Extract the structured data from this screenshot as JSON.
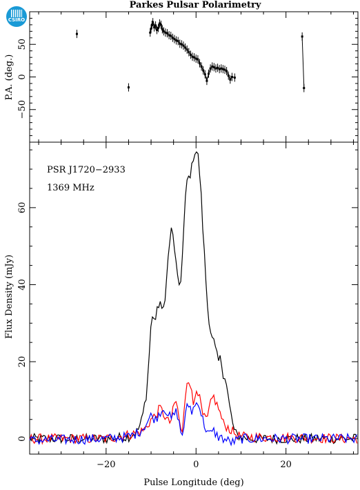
{
  "chart_data": [
    {
      "type": "scatter",
      "panel": "position-angle",
      "title": "Parkes Pulsar Polarimetry",
      "ylabel": "P.A. (deg.)",
      "xlim": [
        -37,
        36
      ],
      "ylim": [
        -100,
        100
      ],
      "y_ticks": [
        -50,
        0,
        50
      ],
      "series": [
        {
          "points": [
            [
              -26.5,
              66
            ],
            [
              -15,
              -16
            ],
            [
              -10.2,
              68
            ],
            [
              -10,
              74
            ],
            [
              -9.8,
              80
            ],
            [
              -9.6,
              84
            ],
            [
              -9.3,
              76
            ],
            [
              -9.0,
              79
            ],
            [
              -8.7,
              72
            ],
            [
              -8.4,
              75
            ],
            [
              -8.1,
              82
            ],
            [
              -7.8,
              80
            ],
            [
              -7.5,
              73
            ],
            [
              -7.2,
              70
            ],
            [
              -6.8,
              68
            ],
            [
              -6.4,
              67
            ],
            [
              -6.0,
              64
            ],
            [
              -5.6,
              63
            ],
            [
              -5.2,
              60
            ],
            [
              -4.8,
              58
            ],
            [
              -4.4,
              56
            ],
            [
              -4.0,
              55
            ],
            [
              -3.6,
              51
            ],
            [
              -3.2,
              50
            ],
            [
              -2.8,
              48
            ],
            [
              -2.4,
              45
            ],
            [
              -2.0,
              42
            ],
            [
              -1.6,
              38
            ],
            [
              -1.2,
              34
            ],
            [
              -0.8,
              31
            ],
            [
              -0.4,
              30
            ],
            [
              0.0,
              28
            ],
            [
              0.4,
              27
            ],
            [
              0.8,
              21
            ],
            [
              1.2,
              16
            ],
            [
              1.6,
              10
            ],
            [
              2.0,
              4
            ],
            [
              2.4,
              -6
            ],
            [
              2.8,
              5
            ],
            [
              3.2,
              13
            ],
            [
              3.6,
              16
            ],
            [
              4.0,
              15
            ],
            [
              4.4,
              13
            ],
            [
              4.8,
              14
            ],
            [
              5.2,
              12
            ],
            [
              5.6,
              13
            ],
            [
              6.0,
              12
            ],
            [
              6.4,
              11
            ],
            [
              6.8,
              9
            ],
            [
              7.2,
              2
            ],
            [
              7.6,
              -4
            ],
            [
              8.0,
              0
            ],
            [
              8.6,
              -1
            ],
            [
              23.6,
              62
            ],
            [
              24.0,
              -17
            ]
          ]
        }
      ]
    },
    {
      "type": "line",
      "panel": "profile",
      "xlabel": "Pulse Longitude (deg)",
      "ylabel": "Flux Density (mJy)",
      "annotations": [
        "PSR J1720−2933",
        "1369 MHz"
      ],
      "xlim": [
        -37,
        36
      ],
      "ylim": [
        -4,
        77
      ],
      "x_ticks": [
        -20,
        0,
        20
      ],
      "y_ticks": [
        0,
        20,
        40,
        60
      ],
      "x_tick_labels": [
        "−20",
        "0",
        "20"
      ],
      "y_tick_labels": [
        "0",
        "20",
        "40",
        "60"
      ],
      "grid": false,
      "colors": {
        "total": "#000000",
        "linear": "#ff0000",
        "circular": "#0000ff"
      },
      "series": [
        {
          "key": "total",
          "x": [
            -37,
            -20,
            -15,
            -13,
            -12,
            -11,
            -10.5,
            -10,
            -9.5,
            -9,
            -8.5,
            -8,
            -7.5,
            -7,
            -6.5,
            -6,
            -5.5,
            -5,
            -4.5,
            -4,
            -3.5,
            -3,
            -2.5,
            -2,
            -1.5,
            -1,
            -0.5,
            0,
            0.5,
            1,
            1.5,
            2,
            2.5,
            3,
            3.5,
            4,
            4.5,
            5,
            5.5,
            6,
            6.5,
            7,
            7.5,
            8,
            8.5,
            9,
            10,
            12,
            36
          ],
          "values": [
            0,
            0,
            0.5,
            2,
            5,
            12,
            20,
            30,
            32,
            31,
            34,
            36,
            32,
            36,
            42,
            50,
            54,
            52,
            46,
            40,
            40,
            48,
            60,
            67,
            68,
            70,
            74,
            75,
            73,
            66,
            55,
            45,
            35,
            30,
            26,
            25,
            22,
            20,
            21,
            17,
            16,
            12,
            8,
            5,
            2,
            1,
            0.5,
            0,
            0
          ]
        },
        {
          "key": "linear",
          "x": [
            -37,
            -20,
            -15,
            -13,
            -12,
            -11,
            -10,
            -9,
            -8.5,
            -8,
            -7,
            -6,
            -5.5,
            -5,
            -4.5,
            -4,
            -3.5,
            -3,
            -2.5,
            -2,
            -1.5,
            -1,
            -0.5,
            0,
            0.5,
            1,
            1.5,
            2,
            2.5,
            3,
            3.5,
            4,
            4.5,
            5,
            5.5,
            6,
            7,
            8,
            9,
            10,
            36
          ],
          "values": [
            0,
            0,
            1,
            1.5,
            2,
            3,
            5,
            6,
            7,
            8,
            6,
            4,
            5,
            8,
            10,
            7,
            3,
            1,
            10,
            15,
            16,
            12,
            8,
            14,
            12,
            9,
            6,
            5,
            5,
            8,
            10,
            11,
            9,
            8,
            6,
            4,
            3,
            2,
            1,
            0.5,
            0
          ]
        },
        {
          "key": "circular",
          "x": [
            -37,
            -20,
            -15,
            -13,
            -12,
            -11,
            -10,
            -9,
            -8,
            -7,
            -6,
            -5.5,
            -5,
            -4.5,
            -4,
            -3.5,
            -3,
            -2.5,
            -2,
            -1.5,
            -1,
            -0.5,
            0,
            0.5,
            1,
            1.5,
            2,
            2.5,
            3,
            3.5,
            4,
            4.5,
            5,
            6,
            7,
            8,
            9,
            10,
            36
          ],
          "values": [
            -0.5,
            0,
            0.5,
            1.5,
            2.5,
            4,
            6,
            5,
            7,
            8,
            6,
            5,
            6,
            7,
            6,
            2,
            1,
            5,
            8,
            9,
            7,
            8,
            9,
            10,
            7,
            5,
            3,
            2,
            1,
            1.5,
            2,
            1,
            0.5,
            0,
            -0.5,
            -1,
            -0.5,
            0,
            0
          ]
        }
      ]
    }
  ]
}
